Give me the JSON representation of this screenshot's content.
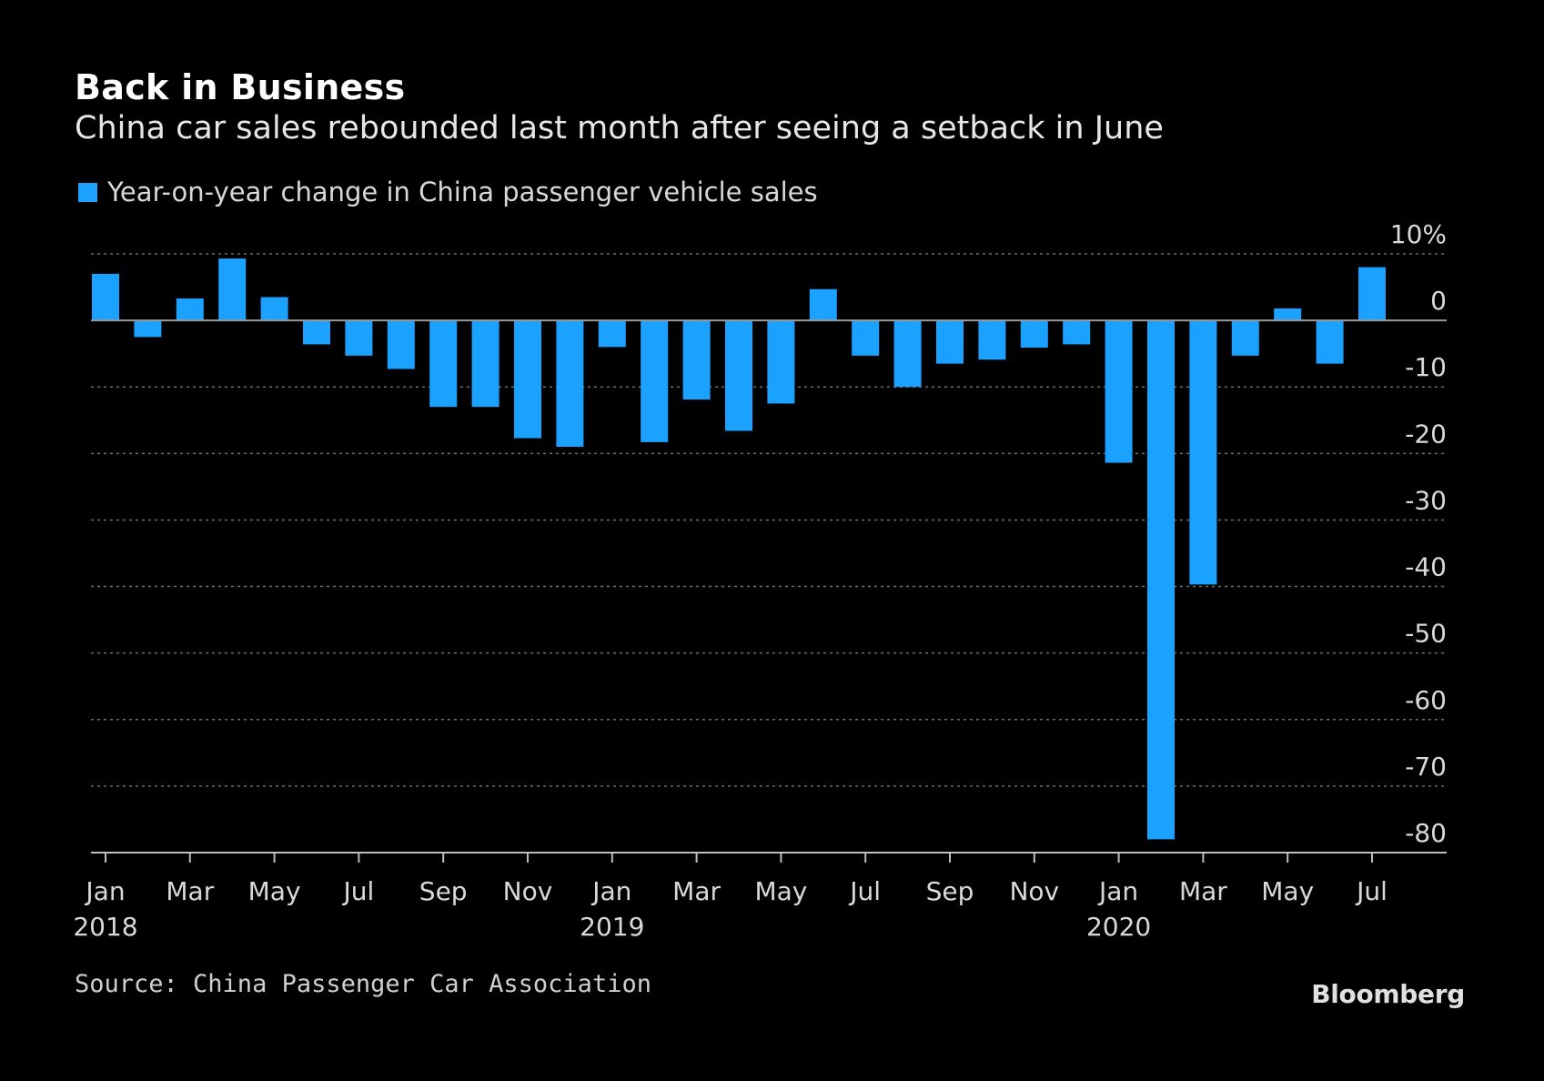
{
  "title": "Back in Business",
  "subtitle": "China car sales rebounded last month after seeing a setback in June",
  "legend_label": "Year-on-year change in China passenger vehicle sales",
  "source": "Source: China Passenger Car Association",
  "brand": "Bloomberg",
  "colors": {
    "background": "#000000",
    "bar": "#1ba1ff",
    "text": "#ffffff",
    "axis_text": "#d9d9d9",
    "grid": "#6e6e6e"
  },
  "chart_data": {
    "type": "bar",
    "categories": [
      "Jan 2018",
      "Feb 2018",
      "Mar 2018",
      "Apr 2018",
      "May 2018",
      "Jun 2018",
      "Jul 2018",
      "Aug 2018",
      "Sep 2018",
      "Oct 2018",
      "Nov 2018",
      "Dec 2018",
      "Jan 2019",
      "Feb 2019",
      "Mar 2019",
      "Apr 2019",
      "May 2019",
      "Jun 2019",
      "Jul 2019",
      "Aug 2019",
      "Sep 2019",
      "Oct 2019",
      "Nov 2019",
      "Dec 2019",
      "Jan 2020",
      "Feb 2020",
      "Mar 2020",
      "Apr 2020",
      "May 2020",
      "Jun 2020",
      "Jul 2020"
    ],
    "series": [
      {
        "name": "Year-on-year change in China passenger vehicle sales",
        "values": [
          7,
          -2.5,
          3.3,
          9.3,
          3.5,
          -3.6,
          -5.3,
          -7.3,
          -13,
          -13,
          -17.7,
          -19,
          -4,
          -18.3,
          -11.9,
          -16.6,
          -12.5,
          4.7,
          -5.3,
          -10,
          -6.5,
          -5.9,
          -4.1,
          -3.6,
          -21.4,
          -78,
          -39.7,
          -5.3,
          1.8,
          -6.5,
          8
        ]
      }
    ],
    "ylim": [
      -80,
      10
    ],
    "yticks": [
      10,
      0,
      -10,
      -20,
      -30,
      -40,
      -50,
      -60,
      -70,
      -80
    ],
    "ytick_labels": [
      "10%",
      "0",
      "-10",
      "-20",
      "-30",
      "-40",
      "-50",
      "-60",
      "-70",
      "-80"
    ],
    "xtick_labels": [
      {
        "month": "Jan",
        "year": "2018"
      },
      {
        "month": "Mar",
        "year": ""
      },
      {
        "month": "May",
        "year": ""
      },
      {
        "month": "Jul",
        "year": ""
      },
      {
        "month": "Sep",
        "year": ""
      },
      {
        "month": "Nov",
        "year": ""
      },
      {
        "month": "Jan",
        "year": "2019"
      },
      {
        "month": "Mar",
        "year": ""
      },
      {
        "month": "May",
        "year": ""
      },
      {
        "month": "Jul",
        "year": ""
      },
      {
        "month": "Sep",
        "year": ""
      },
      {
        "month": "Nov",
        "year": ""
      },
      {
        "month": "Jan",
        "year": "2020"
      },
      {
        "month": "Mar",
        "year": ""
      },
      {
        "month": "May",
        "year": ""
      },
      {
        "month": "Jul",
        "year": ""
      }
    ],
    "xtick_every": 2,
    "grid": true,
    "legend_position": "top-left"
  }
}
